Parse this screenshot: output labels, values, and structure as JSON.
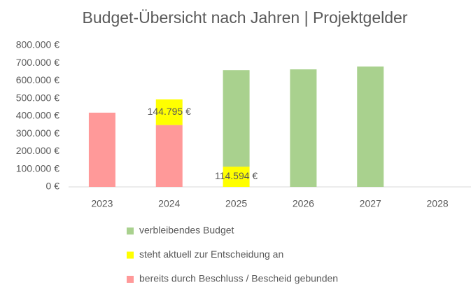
{
  "chart_data": {
    "type": "stacked_bar",
    "title": "Budget-Übersicht nach Jahren | Projektgelder",
    "categories": [
      "2023",
      "2024",
      "2025",
      "2026",
      "2027",
      "2028"
    ],
    "series": [
      {
        "name": "bereits durch Beschluss / Bescheid gebunden",
        "color": "#ff9999",
        "values": [
          420000,
          350000,
          null,
          null,
          null,
          null
        ]
      },
      {
        "name": "steht aktuell zur Entscheidung an",
        "color": "#ffff00",
        "values": [
          null,
          144795,
          114594,
          null,
          null,
          null
        ],
        "value_labels": [
          null,
          "144.795 €",
          "114.594 €",
          null,
          null,
          null
        ]
      },
      {
        "name": "verbleibendes Budget",
        "color": "#a9d18e",
        "values": [
          null,
          null,
          546000,
          665000,
          681000,
          null
        ]
      }
    ],
    "ylim": [
      0,
      800000
    ],
    "yticks": [
      {
        "value": 0,
        "label": "0 €"
      },
      {
        "value": 100000,
        "label": "100.000 €"
      },
      {
        "value": 200000,
        "label": "200.000 €"
      },
      {
        "value": 300000,
        "label": "300.000 €"
      },
      {
        "value": 400000,
        "label": "400.000 €"
      },
      {
        "value": 500000,
        "label": "500.000 €"
      },
      {
        "value": 600000,
        "label": "600.000 €"
      },
      {
        "value": 700000,
        "label": "700.000 €"
      },
      {
        "value": 800000,
        "label": "800.000 €"
      }
    ],
    "grid": false
  }
}
